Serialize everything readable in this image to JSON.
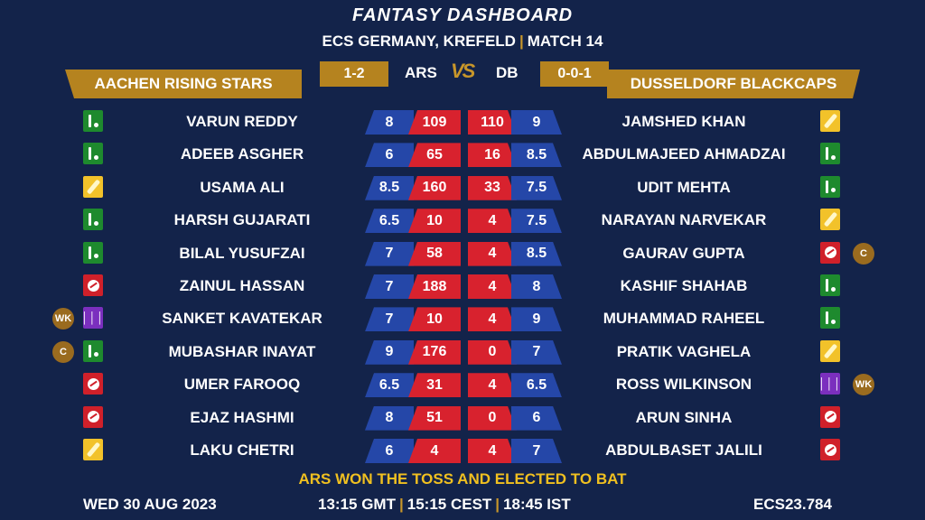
{
  "header": {
    "title": "FANTASY DASHBOARD",
    "league": "ECS GERMANY, KREFELD",
    "separator": "|",
    "match": "MATCH 14"
  },
  "teams": {
    "left": {
      "name": "AACHEN RISING STARS",
      "abbr": "ARS",
      "record": "1-2"
    },
    "right": {
      "name": "DUSSELDORF BLACKCAPS",
      "abbr": "DB",
      "record": "0-0-1"
    },
    "vs": "VS"
  },
  "players_left": [
    {
      "name": "VARUN REDDY",
      "credit": "8",
      "points": "109",
      "role": "all-rounder-icon"
    },
    {
      "name": "ADEEB ASGHER",
      "credit": "6",
      "points": "65",
      "role": "all-rounder-icon"
    },
    {
      "name": "USAMA ALI",
      "credit": "8.5",
      "points": "160",
      "role": "batsman-icon"
    },
    {
      "name": "HARSH GUJARATI",
      "credit": "6.5",
      "points": "10",
      "role": "all-rounder-icon"
    },
    {
      "name": "BILAL YUSUFZAI",
      "credit": "7",
      "points": "58",
      "role": "all-rounder-icon"
    },
    {
      "name": "ZAINUL HASSAN",
      "credit": "7",
      "points": "188",
      "role": "bowler-icon"
    },
    {
      "name": "SANKET KAVATEKAR",
      "credit": "7",
      "points": "10",
      "role": "wicketkeeper-icon",
      "badge": "WK"
    },
    {
      "name": "MUBASHAR INAYAT",
      "credit": "9",
      "points": "176",
      "role": "all-rounder-icon",
      "badge": "C"
    },
    {
      "name": "UMER FAROOQ",
      "credit": "6.5",
      "points": "31",
      "role": "bowler-icon"
    },
    {
      "name": "EJAZ HASHMI",
      "credit": "8",
      "points": "51",
      "role": "bowler-icon"
    },
    {
      "name": "LAKU CHETRI",
      "credit": "6",
      "points": "4",
      "role": "batsman-icon"
    }
  ],
  "players_right": [
    {
      "name": "JAMSHED KHAN",
      "credit": "9",
      "points": "110",
      "role": "batsman-icon"
    },
    {
      "name": "ABDULMAJEED AHMADZAI",
      "credit": "8.5",
      "points": "16",
      "role": "all-rounder-icon"
    },
    {
      "name": "UDIT MEHTA",
      "credit": "7.5",
      "points": "33",
      "role": "all-rounder-icon"
    },
    {
      "name": "NARAYAN NARVEKAR",
      "credit": "7.5",
      "points": "4",
      "role": "batsman-icon"
    },
    {
      "name": "GAURAV GUPTA",
      "credit": "8.5",
      "points": "4",
      "role": "bowler-icon",
      "badge": "C"
    },
    {
      "name": "KASHIF SHAHAB",
      "credit": "8",
      "points": "4",
      "role": "all-rounder-icon"
    },
    {
      "name": "MUHAMMAD RAHEEL",
      "credit": "9",
      "points": "4",
      "role": "all-rounder-icon"
    },
    {
      "name": "PRATIK VAGHELA",
      "credit": "7",
      "points": "0",
      "role": "batsman-icon"
    },
    {
      "name": "ROSS WILKINSON",
      "credit": "6.5",
      "points": "4",
      "role": "wicketkeeper-icon",
      "badge": "WK"
    },
    {
      "name": "ARUN SINHA",
      "credit": "6",
      "points": "0",
      "role": "bowler-icon"
    },
    {
      "name": "ABDULBASET JALILI",
      "credit": "7",
      "points": "4",
      "role": "bowler-icon"
    }
  ],
  "toss": "ARS WON THE TOSS AND ELECTED TO BAT",
  "footer": {
    "date": "WED 30 AUG 2023",
    "time_gmt": "13:15 GMT",
    "time_cest": "15:15 CEST",
    "time_ist": "18:45 IST",
    "separator": "|",
    "code": "ECS23.784"
  },
  "colors": {
    "background": "#13234a",
    "gold": "#b5831f",
    "credit_blue": "#2547a8",
    "points_red": "#d8222e",
    "toss_yellow": "#f0c020"
  }
}
